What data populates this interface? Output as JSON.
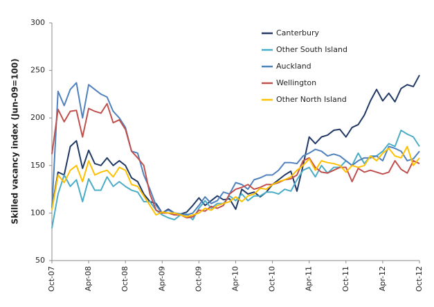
{
  "chart_data": {
    "type": "line",
    "y_label": "Skilled vacancy index (Jun-09=100)",
    "categories": [
      "Oct-07",
      null,
      null,
      null,
      null,
      null,
      "Apr-08",
      null,
      null,
      null,
      null,
      null,
      "Oct-08",
      null,
      null,
      null,
      null,
      null,
      "Apr-09",
      null,
      null,
      null,
      null,
      null,
      "Oct-09",
      null,
      null,
      null,
      null,
      null,
      "Apr-10",
      null,
      null,
      null,
      null,
      null,
      "Oct-10",
      null,
      null,
      null,
      null,
      null,
      "Apr-11",
      null,
      null,
      null,
      null,
      null,
      "Oct-11",
      null,
      null,
      null,
      null,
      null,
      "Apr-12",
      null,
      null,
      null,
      null,
      null,
      "Oct-12"
    ],
    "series": [
      {
        "name": "Canterbury",
        "color": "#1f3864",
        "values": [
          105,
          143,
          140,
          170,
          176,
          147,
          166,
          152,
          150,
          158,
          150,
          155,
          150,
          137,
          133,
          120,
          112,
          110,
          100,
          104,
          100,
          99,
          101,
          108,
          116,
          108,
          113,
          118,
          114,
          115,
          104,
          125,
          120,
          122,
          117,
          122,
          130,
          135,
          140,
          144,
          123,
          150,
          180,
          173,
          180,
          182,
          187,
          188,
          180,
          190,
          193,
          203,
          218,
          230,
          218,
          226,
          217,
          231,
          235,
          233,
          245
        ]
      },
      {
        "name": "Other South Island",
        "color": "#4bacc6",
        "values": [
          84,
          120,
          140,
          128,
          135,
          112,
          136,
          124,
          124,
          138,
          128,
          133,
          128,
          124,
          122,
          112,
          112,
          103,
          98,
          95,
          93,
          98,
          99,
          93,
          105,
          113,
          105,
          110,
          110,
          118,
          113,
          120,
          113,
          118,
          118,
          122,
          122,
          120,
          125,
          123,
          135,
          145,
          148,
          138,
          150,
          142,
          148,
          148,
          155,
          150,
          163,
          152,
          160,
          160,
          165,
          173,
          170,
          187,
          183,
          180,
          170
        ]
      },
      {
        "name": "Auckland",
        "color": "#4f81bd",
        "values": [
          105,
          228,
          213,
          230,
          237,
          200,
          235,
          230,
          225,
          222,
          207,
          200,
          190,
          165,
          163,
          140,
          125,
          108,
          100,
          103,
          100,
          99,
          98,
          100,
          108,
          117,
          110,
          113,
          122,
          120,
          132,
          130,
          125,
          135,
          137,
          140,
          140,
          145,
          153,
          153,
          152,
          160,
          163,
          167,
          165,
          160,
          162,
          160,
          155,
          150,
          155,
          158,
          158,
          160,
          155,
          170,
          168,
          165,
          155,
          157,
          165
        ]
      },
      {
        "name": "Wellington",
        "color": "#c0504d",
        "values": [
          162,
          209,
          196,
          207,
          208,
          180,
          210,
          207,
          205,
          215,
          195,
          198,
          188,
          165,
          158,
          150,
          120,
          103,
          100,
          100,
          98,
          98,
          95,
          96,
          103,
          102,
          107,
          105,
          108,
          120,
          125,
          127,
          130,
          125,
          127,
          130,
          130,
          132,
          135,
          136,
          140,
          155,
          158,
          148,
          143,
          142,
          145,
          148,
          148,
          133,
          147,
          143,
          145,
          143,
          141,
          143,
          155,
          146,
          142,
          155,
          152
        ]
      },
      {
        "name": "Other North Island",
        "color": "#ffc000",
        "values": [
          103,
          140,
          132,
          145,
          150,
          133,
          155,
          140,
          143,
          145,
          138,
          148,
          145,
          130,
          128,
          118,
          108,
          98,
          101,
          100,
          100,
          98,
          96,
          98,
          100,
          105,
          103,
          108,
          110,
          112,
          117,
          112,
          118,
          120,
          126,
          125,
          130,
          133,
          135,
          138,
          145,
          150,
          157,
          145,
          155,
          153,
          152,
          150,
          143,
          150,
          148,
          150,
          160,
          155,
          163,
          168,
          160,
          158,
          170,
          150,
          158
        ]
      }
    ],
    "ylim": [
      50,
      300
    ],
    "yticks": [
      50,
      100,
      150,
      200,
      250,
      300
    ],
    "grid": false,
    "legend": "top-right"
  }
}
